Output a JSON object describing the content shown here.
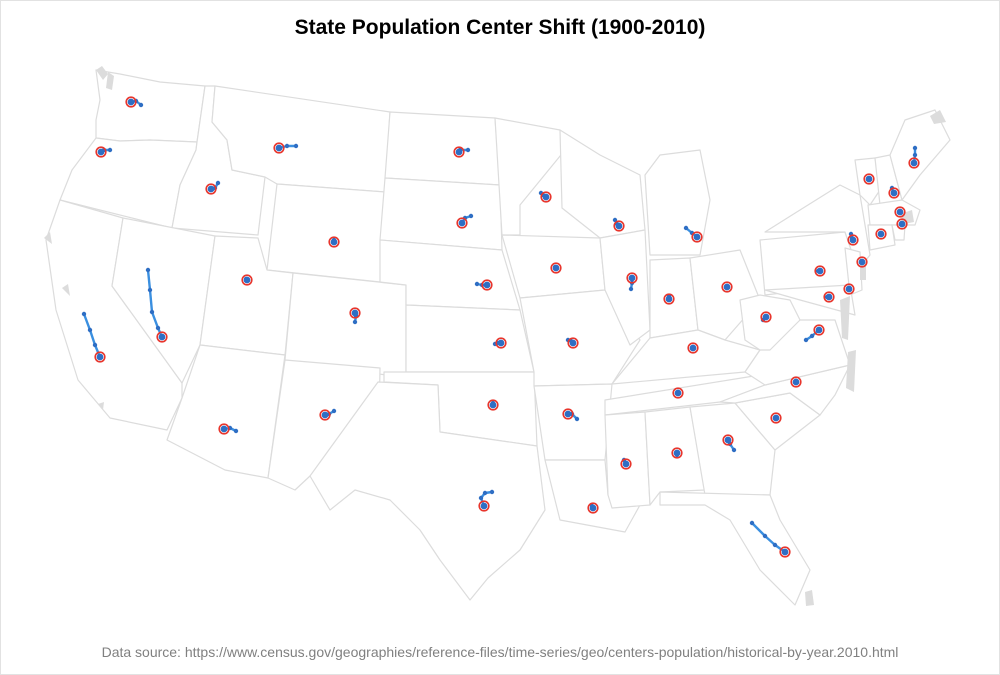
{
  "title": "State Population Center Shift (1900-2010)",
  "source": "Data source: https://www.census.gov/geographies/reference-files/time-series/geo/centers-population/historical-by-year.2010.html",
  "colors": {
    "track": "#3a8fe0",
    "track_dot": "#2e6ec4",
    "end_ring": "#e8352c",
    "state_border": "#dcdcdc",
    "background": "#ffffff"
  }
}
